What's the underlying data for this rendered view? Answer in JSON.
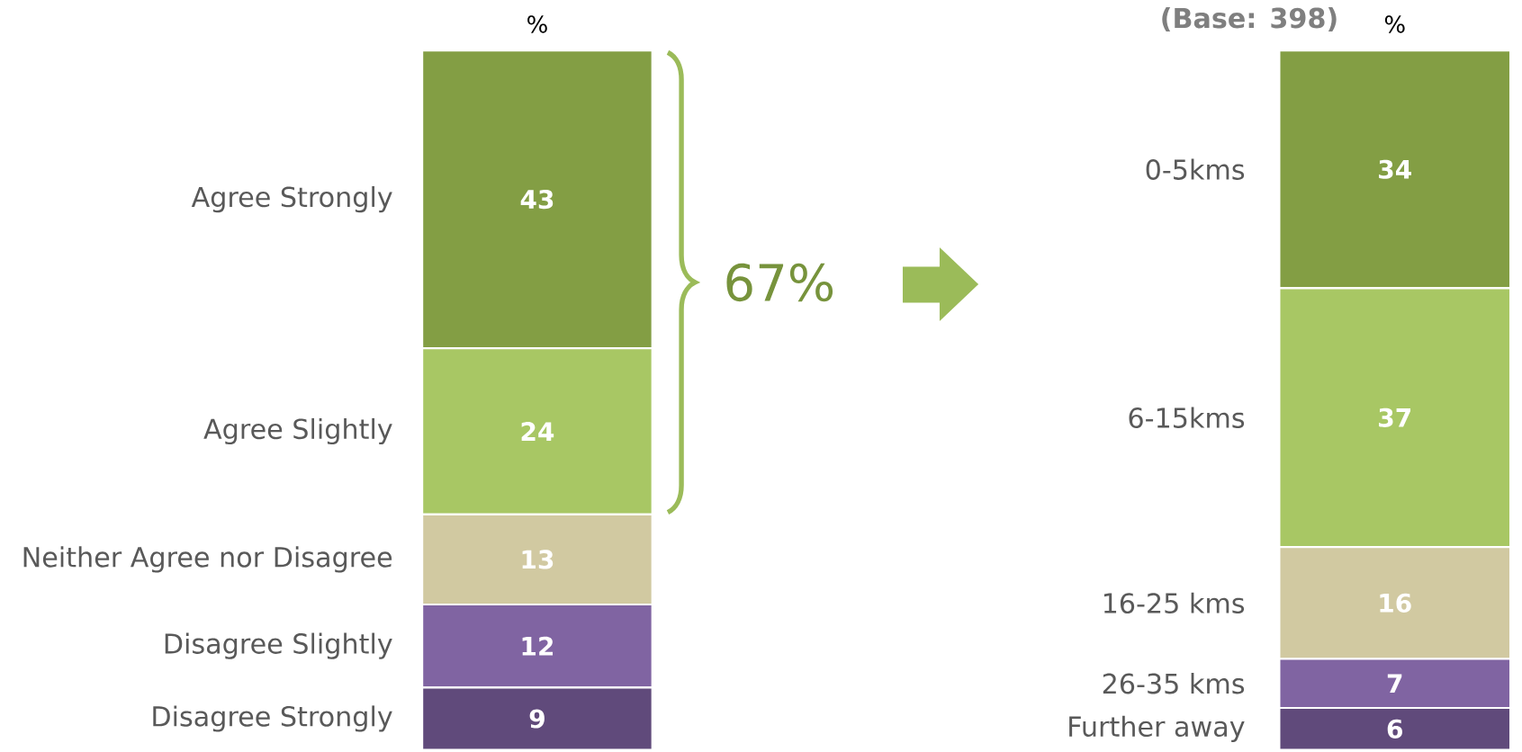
{
  "chart_data": [
    {
      "type": "bar",
      "stacked": true,
      "categories": [
        null
      ],
      "data_labels": true,
      "series": [
        {
          "name": "Disagree Strongly",
          "color": "#604a7b",
          "values": [
            9
          ]
        },
        {
          "name": "Disagree Slightly",
          "color": "#8064a2",
          "values": [
            12
          ]
        },
        {
          "name": "Neither Agree nor Disagree",
          "color": "#d1c9a1",
          "values": [
            13
          ]
        },
        {
          "name": "Agree Slightly",
          "color": "#a8c764",
          "values": [
            24
          ]
        },
        {
          "name": "Agree Strongly",
          "color": "#839e44",
          "values": [
            43
          ]
        }
      ],
      "annotations": [
        "%",
        "67%"
      ]
    },
    {
      "type": "bar",
      "stacked": true,
      "categories": [
        null
      ],
      "data_labels": true,
      "subtitle": "(Base: 398)",
      "series": [
        {
          "name": "Further away",
          "color": "#604a7b",
          "values": [
            6
          ]
        },
        {
          "name": "26-35 kms",
          "color": "#8064a2",
          "values": [
            7
          ]
        },
        {
          "name": "16-25 kms",
          "color": "#d1c9a1",
          "values": [
            16
          ]
        },
        {
          "name": "6-15kms",
          "color": "#a8c764",
          "values": [
            37
          ]
        },
        {
          "name": "0-5kms",
          "color": "#839e44",
          "values": [
            34
          ]
        }
      ],
      "annotations": [
        "%"
      ]
    }
  ]
}
